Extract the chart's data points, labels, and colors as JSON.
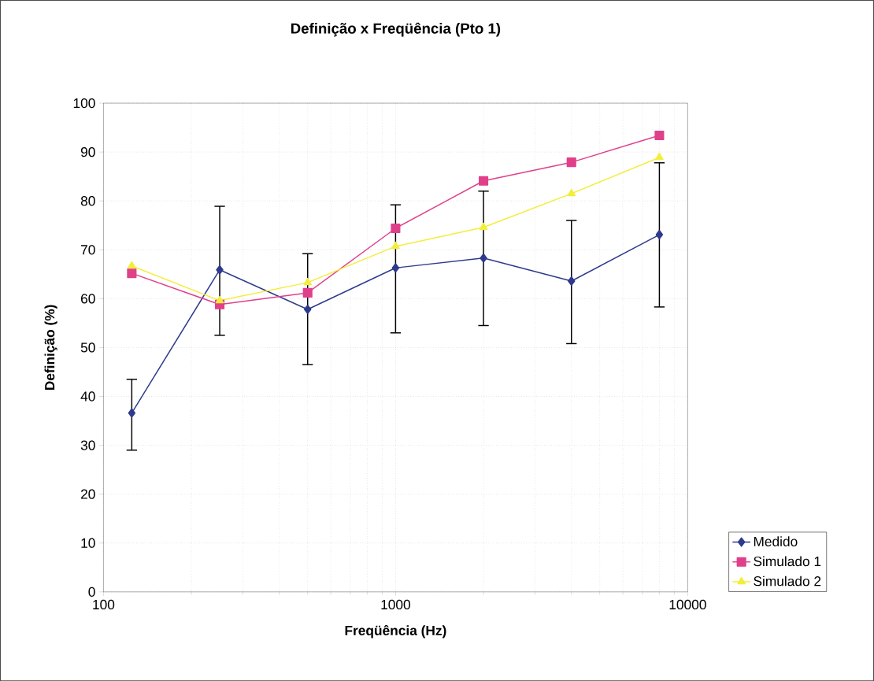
{
  "chart_data": {
    "type": "line",
    "title": "Definição x Freqüência (Pto 1)",
    "xlabel": "Freqüência (Hz)",
    "ylabel": "Definição (%)",
    "log": "x",
    "x": [
      125,
      250,
      500,
      1000,
      2000,
      4000,
      8000
    ],
    "xlim": [
      100,
      10000
    ],
    "xticks": [
      100,
      1000,
      10000
    ],
    "ylim": [
      0,
      100
    ],
    "yticks": [
      0,
      10,
      20,
      30,
      40,
      50,
      60,
      70,
      80,
      90,
      100
    ],
    "grid": true,
    "legend": "bottom right",
    "line_style": "solid",
    "series": [
      {
        "name": "Medido",
        "color": "#2e3a8c",
        "marker": "diamond",
        "values": [
          36.6,
          65.9,
          57.8,
          66.3,
          68.3,
          63.6,
          73.1
        ],
        "errors": [
          [
            29,
            43.5
          ],
          [
            52.5,
            78.9
          ],
          [
            46.5,
            69.2
          ],
          [
            53,
            79.2
          ],
          [
            54.5,
            82
          ],
          [
            50.8,
            76
          ],
          [
            58.3,
            87.8
          ]
        ]
      },
      {
        "name": "Simulado 1",
        "color": "#e0408a",
        "marker": "square",
        "values": [
          65.2,
          58.8,
          61.2,
          74.4,
          84.1,
          87.9,
          93.4
        ]
      },
      {
        "name": "Simulado 2",
        "color": "#f2ee3a",
        "marker": "triangle",
        "values": [
          66.7,
          59.6,
          63.3,
          70.7,
          74.6,
          81.5,
          88.9
        ]
      }
    ]
  }
}
